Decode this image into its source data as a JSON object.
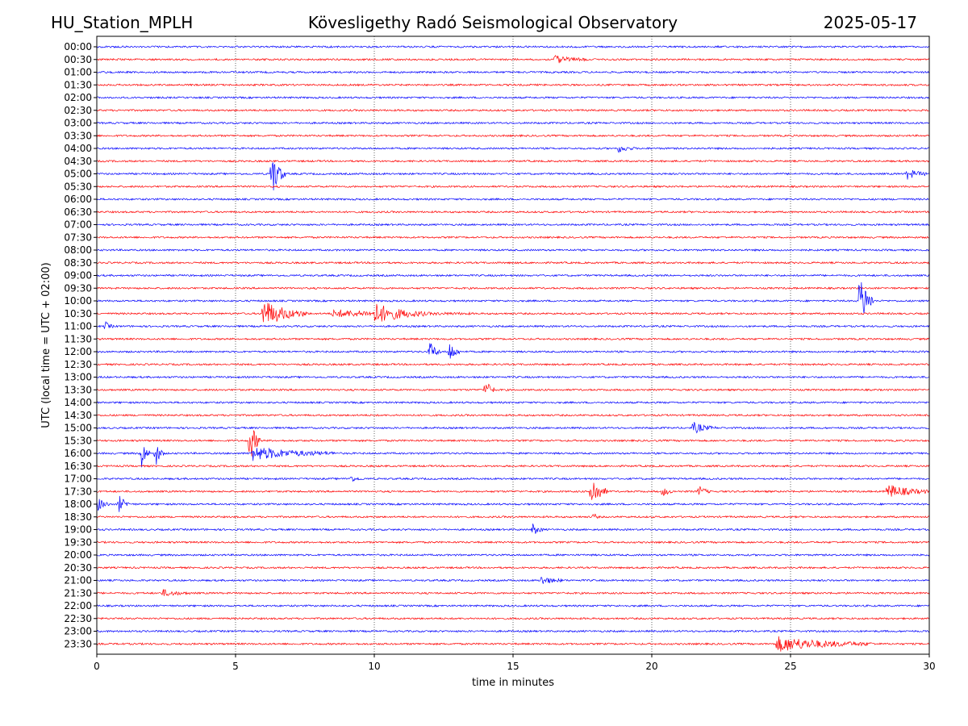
{
  "header": {
    "station": "HU_Station_MPLH",
    "observatory": "Kövesligethy Radó Seismological Observatory",
    "date": "2025-05-17"
  },
  "chart_data": {
    "type": "line",
    "title": "Kövesligethy Radó Seismological Observatory",
    "xlabel": "time in minutes",
    "ylabel": "UTC (local time = UTC + 02:00)",
    "xlim": [
      0,
      30
    ],
    "x_ticks": [
      0,
      5,
      10,
      15,
      20,
      25,
      30
    ],
    "grid": "vertical dotted lines at x ticks",
    "colors": {
      "even_rows": "#0000ff",
      "odd_rows": "#ff0000"
    },
    "rows": [
      "00:00",
      "00:30",
      "01:00",
      "01:30",
      "02:00",
      "02:30",
      "03:00",
      "03:30",
      "04:00",
      "04:30",
      "05:00",
      "05:30",
      "06:00",
      "06:30",
      "07:00",
      "07:30",
      "08:00",
      "08:30",
      "09:00",
      "09:30",
      "10:00",
      "10:30",
      "11:00",
      "11:30",
      "12:00",
      "12:30",
      "13:00",
      "13:30",
      "14:00",
      "14:30",
      "15:00",
      "15:30",
      "16:00",
      "16:30",
      "17:00",
      "17:30",
      "18:00",
      "18:30",
      "19:00",
      "19:30",
      "20:00",
      "20:30",
      "21:00",
      "21:30",
      "22:00",
      "22:30",
      "23:00",
      "23:30"
    ],
    "events": [
      {
        "row": "00:30",
        "minute": 16.5,
        "duration_min": 1.2,
        "amplitude": 0.3
      },
      {
        "row": "04:00",
        "minute": 18.8,
        "duration_min": 0.6,
        "amplitude": 0.3
      },
      {
        "row": "05:00",
        "minute": 6.3,
        "duration_min": 0.5,
        "amplitude": 1.9
      },
      {
        "row": "05:00",
        "minute": 29.2,
        "duration_min": 0.8,
        "amplitude": 0.4
      },
      {
        "row": "10:00",
        "minute": 27.5,
        "duration_min": 0.5,
        "amplitude": 2.4
      },
      {
        "row": "10:30",
        "minute": 6.0,
        "duration_min": 1.6,
        "amplitude": 1.1
      },
      {
        "row": "10:30",
        "minute": 10.0,
        "duration_min": 1.8,
        "amplitude": 0.7
      },
      {
        "row": "10:30",
        "minute": 8.5,
        "duration_min": 5.0,
        "amplitude": 0.25
      },
      {
        "row": "11:00",
        "minute": 0.3,
        "duration_min": 0.3,
        "amplitude": 0.35
      },
      {
        "row": "12:00",
        "minute": 12.0,
        "duration_min": 0.4,
        "amplitude": 0.8
      },
      {
        "row": "12:00",
        "minute": 12.7,
        "duration_min": 0.4,
        "amplitude": 0.9
      },
      {
        "row": "13:30",
        "minute": 14.0,
        "duration_min": 0.4,
        "amplitude": 0.8
      },
      {
        "row": "15:00",
        "minute": 21.5,
        "duration_min": 0.8,
        "amplitude": 0.45
      },
      {
        "row": "15:30",
        "minute": 5.5,
        "duration_min": 0.4,
        "amplitude": 1.9
      },
      {
        "row": "16:00",
        "minute": 1.6,
        "duration_min": 0.3,
        "amplitude": 1.4
      },
      {
        "row": "16:00",
        "minute": 2.1,
        "duration_min": 0.3,
        "amplitude": 1.2
      },
      {
        "row": "16:00",
        "minute": 5.6,
        "duration_min": 3.0,
        "amplitude": 0.55
      },
      {
        "row": "17:00",
        "minute": 9.1,
        "duration_min": 0.5,
        "amplitude": 0.25
      },
      {
        "row": "17:30",
        "minute": 17.8,
        "duration_min": 0.6,
        "amplitude": 1.4
      },
      {
        "row": "17:30",
        "minute": 20.4,
        "duration_min": 0.4,
        "amplitude": 0.35
      },
      {
        "row": "17:30",
        "minute": 21.7,
        "duration_min": 0.4,
        "amplitude": 0.45
      },
      {
        "row": "17:30",
        "minute": 28.5,
        "duration_min": 1.5,
        "amplitude": 0.55
      },
      {
        "row": "18:00",
        "minute": 0.0,
        "duration_min": 0.5,
        "amplitude": 0.6
      },
      {
        "row": "18:00",
        "minute": 0.8,
        "duration_min": 0.4,
        "amplitude": 0.7
      },
      {
        "row": "18:30",
        "minute": 17.9,
        "duration_min": 0.2,
        "amplitude": 0.3
      },
      {
        "row": "19:00",
        "minute": 15.7,
        "duration_min": 0.4,
        "amplitude": 0.5
      },
      {
        "row": "21:00",
        "minute": 16.0,
        "duration_min": 0.8,
        "amplitude": 0.35
      },
      {
        "row": "21:30",
        "minute": 2.4,
        "duration_min": 1.0,
        "amplitude": 0.25
      },
      {
        "row": "23:30",
        "minute": 24.5,
        "duration_min": 3.5,
        "amplitude": 0.6
      }
    ]
  }
}
